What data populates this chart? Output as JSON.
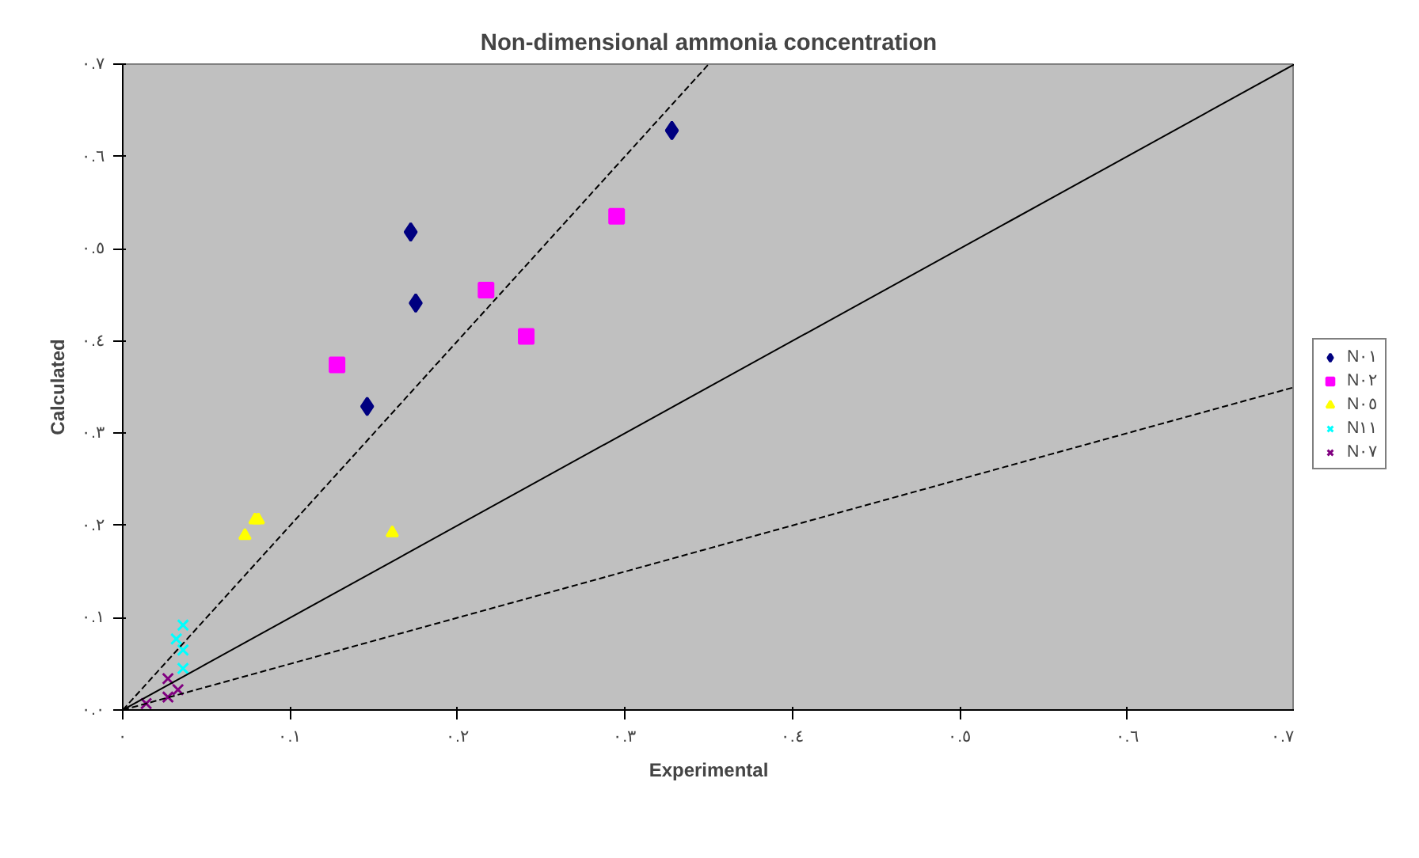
{
  "chart_data": {
    "type": "scatter",
    "title": "Non-dimensional ammonia concentration",
    "xlabel": "Experimental",
    "ylabel": "Calculated",
    "xlim": [
      0,
      0.7
    ],
    "ylim": [
      0,
      0.7
    ],
    "xticks": [
      {
        "value": 0,
        "label": "٠"
      },
      {
        "value": 0.1,
        "label": "٠.١"
      },
      {
        "value": 0.2,
        "label": "٠.٢"
      },
      {
        "value": 0.3,
        "label": "٠.٣"
      },
      {
        "value": 0.4,
        "label": "٠.٤"
      },
      {
        "value": 0.5,
        "label": "٠.٥"
      },
      {
        "value": 0.6,
        "label": "٠.٦"
      },
      {
        "value": 0.7,
        "label": "٠.٧"
      }
    ],
    "yticks": [
      {
        "value": 0,
        "label": "٠.٠"
      },
      {
        "value": 0.1,
        "label": "٠.١"
      },
      {
        "value": 0.2,
        "label": "٠.٢"
      },
      {
        "value": 0.3,
        "label": "٠.٣"
      },
      {
        "value": 0.4,
        "label": "٠.٤"
      },
      {
        "value": 0.5,
        "label": "٠.٥"
      },
      {
        "value": 0.6,
        "label": "٠.٦"
      },
      {
        "value": 0.7,
        "label": "٠.٧"
      }
    ],
    "grid": false,
    "legend": "right",
    "series": [
      {
        "name": "N٠١",
        "color": "#000080",
        "marker": "diamond",
        "x": [
          0.172,
          0.175,
          0.146,
          0.328
        ],
        "values": [
          0.518,
          0.441,
          0.329,
          0.628
        ]
      },
      {
        "name": "N٠٢",
        "color": "#ff00ff",
        "marker": "square",
        "x": [
          0.128,
          0.217,
          0.241,
          0.295
        ],
        "values": [
          0.374,
          0.455,
          0.405,
          0.535
        ]
      },
      {
        "name": "N٠٥",
        "color": "#ffff00",
        "marker": "triangle",
        "x": [
          0.073,
          0.079,
          0.081,
          0.161
        ],
        "values": [
          0.189,
          0.206,
          0.206,
          0.192
        ]
      },
      {
        "name": "N١١",
        "color": "#00ffff",
        "marker": "cross",
        "x": [
          0.036,
          0.032,
          0.036,
          0.036
        ],
        "values": [
          0.092,
          0.077,
          0.065,
          0.045
        ]
      },
      {
        "name": "N٠٧",
        "color": "#800080",
        "marker": "cross",
        "x": [
          0.027,
          0.027,
          0.033,
          0.014
        ],
        "values": [
          0.034,
          0.014,
          0.022,
          0.007
        ]
      },
      {
        "type": "line",
        "color": "#000000",
        "line_style": "dashed",
        "marker": "none",
        "x": [
          0,
          0.35
        ],
        "values": [
          0,
          0.7
        ]
      },
      {
        "type": "line",
        "color": "#000000",
        "line_style": "solid",
        "marker": "none",
        "x": [
          0,
          0.7
        ],
        "values": [
          0,
          0.7
        ]
      },
      {
        "type": "line",
        "color": "#000000",
        "line_style": "dashed",
        "marker": "none",
        "x": [
          0,
          0.7
        ],
        "values": [
          0,
          0.35
        ]
      }
    ]
  }
}
